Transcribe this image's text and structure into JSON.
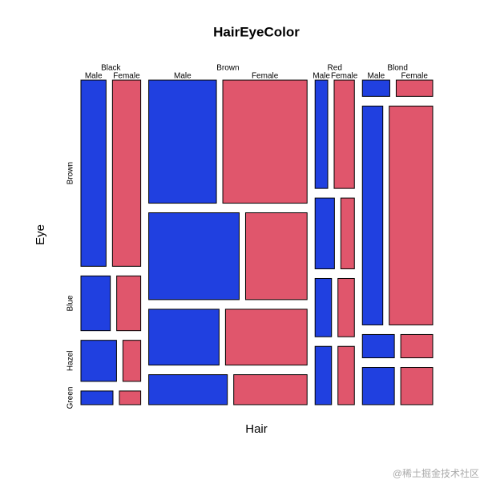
{
  "chart_data": {
    "type": "mosaic",
    "title": "HairEyeColor",
    "x_label": "Hair",
    "y_label": "Eye",
    "categories": [
      "Black",
      "Brown",
      "Red",
      "Blond"
    ],
    "rows": [
      "Brown",
      "Blue",
      "Hazel",
      "Green"
    ],
    "series": [
      {
        "name": "Male",
        "color": "#2040e0",
        "values": [
          [
            32,
            11,
            10,
            3
          ],
          [
            53,
            50,
            25,
            15
          ],
          [
            10,
            10,
            7,
            7
          ],
          [
            3,
            30,
            5,
            8
          ]
        ]
      },
      {
        "name": "Female",
        "color": "#e0566c",
        "values": [
          [
            36,
            9,
            5,
            2
          ],
          [
            66,
            34,
            29,
            14
          ],
          [
            16,
            7,
            7,
            7
          ],
          [
            4,
            64,
            5,
            8
          ]
        ]
      }
    ]
  },
  "watermark": "@稀土掘金技术社区"
}
